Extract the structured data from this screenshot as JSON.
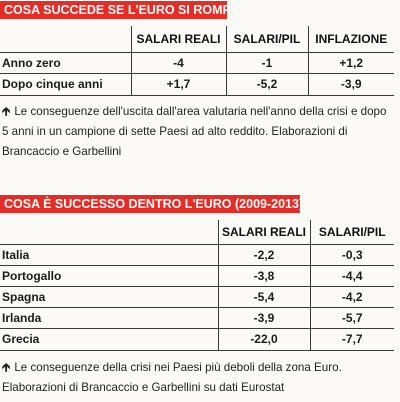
{
  "section1": {
    "title": "COSA SUCCEDE SE L'EURO SI ROMPE",
    "columns": [
      "SALARI REALI",
      "SALARI/PIL",
      "INFLAZIONE"
    ],
    "rows": [
      {
        "label": "Anno zero",
        "values": [
          "-4",
          "-1",
          "+1,2"
        ]
      },
      {
        "label": "Dopo cinque anni",
        "values": [
          "+1,7",
          "-5,2",
          "-3,9"
        ]
      }
    ],
    "caption": "Le conseguenze dell'uscita dall'area valutaria nell'anno della crisi e dopo 5 anni in un campione di sette Paesi ad alto reddito. Elaborazioni di Brancaccio e Garbellini"
  },
  "section2": {
    "title": "COSA È SUCCESSO DENTRO L'EURO (2009-2013)",
    "columns": [
      "SALARI REALI",
      "SALARI/PIL"
    ],
    "rows": [
      {
        "label": "Italia",
        "values": [
          "-2,2",
          "-0,3"
        ]
      },
      {
        "label": "Portogallo",
        "values": [
          "-3,8",
          "-4,4"
        ]
      },
      {
        "label": "Spagna",
        "values": [
          "-5,4",
          "-4,2"
        ]
      },
      {
        "label": "Irlanda",
        "values": [
          "-3,9",
          "-5,7"
        ]
      },
      {
        "label": "Grecia",
        "values": [
          "-22,0",
          "-7,7"
        ]
      }
    ],
    "caption": "Le conseguenze della crisi nei Paesi più deboli della zona Euro. Elaborazioni di Brancaccio e Garbellini su dati Eurostat"
  },
  "icons": {
    "caption_arrow": "arrow-up-icon"
  },
  "colors": {
    "title_background": "#e52d27",
    "title_text": "#ffffff"
  }
}
